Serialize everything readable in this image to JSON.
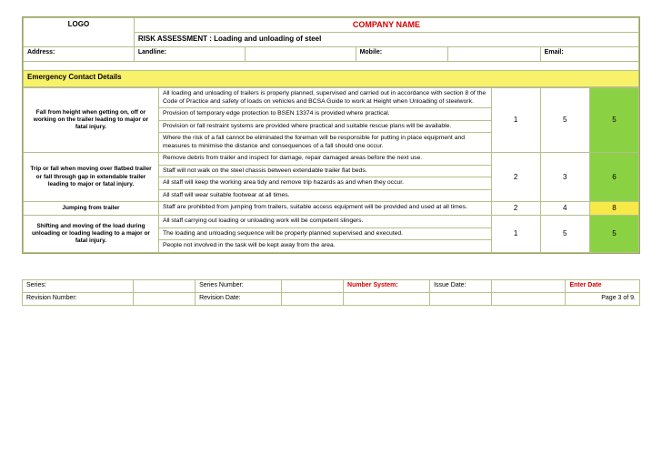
{
  "header": {
    "logo": "LOGO",
    "company": "COMPANY NAME",
    "ra_title": "RISK ASSESSMENT : Loading and unloading of steel",
    "address_label": "Address:",
    "landline_label": "Landline:",
    "mobile_label": "Mobile:",
    "email_label": "Email:"
  },
  "ecd_label": "Emergency Contact Details",
  "rows": [
    {
      "hazard": "Fall from height when getting on, off or working on the trailer leading to major or fatal injury.",
      "measures": [
        "All loading and unloading of trailers is properly planned, supervised and carried out in accordance with section 8 of the Code of Practice and safety of loads on vehicles and BCSA Guide to work at Height when Unloading of steelwork.",
        "Provision of temporary edge protection to BSEN 13374 is provided where practical.",
        "Provision or fall restraint systems are provided where practical and suitable rescue plans will be available.",
        "Where the risk of a fall cannot be eliminated the foreman will be responsible for putting in place equipment and measures to minimise the distance and consequences of a fall should one occur."
      ],
      "score1": "1",
      "score2": "5",
      "score3": "5",
      "score3_class": "green"
    },
    {
      "hazard": "Trip or fall when moving over flatbed trailer or fall through gap in extendable trailer leading to major or fatal injury.",
      "measures": [
        "Remove debris from trailer and inspect for damage, repair damaged areas before the next use.",
        "Staff will not walk on the steel chassis between extendable trailer flat beds.",
        "All staff will keep the working area tidy and remove trip hazards as and when they occur.",
        "All staff will wear suitable footwear at all times."
      ],
      "score1": "2",
      "score2": "3",
      "score3": "6",
      "score3_class": "green"
    },
    {
      "hazard": "Jumping from trailer",
      "measures": [
        "Staff are prohibited from jumping from trailers, suitable access equipment will be provided and used at all times."
      ],
      "score1": "2",
      "score2": "4",
      "score3": "8",
      "score3_class": "yellow"
    },
    {
      "hazard": "Shifting and moving of the load during unloading or loading leading to a major or fatal injury.",
      "measures": [
        "All staff carrying out loading or unloading work will be competent slingers.",
        "The loading and unloading sequence will be properly planned supervised and executed.",
        "People not involved in the task will be kept away from the area."
      ],
      "score1": "1",
      "score2": "5",
      "score3": "5",
      "score3_class": "green"
    }
  ],
  "footer": {
    "series_label": "Series:",
    "series_number_label": "Series Number:",
    "number_system_label": "Number System:",
    "issue_date_label": "Issue Date:",
    "enter_date_label": "Enter Date",
    "revision_number_label": "Revision Number:",
    "revision_date_label": "Revision Date:",
    "page_label": "Page 3 of 9."
  },
  "colors": {
    "border": "#b7bf8a",
    "green": "#8bd144",
    "yellow": "#f7e948",
    "ecd_bar": "#f7f26a",
    "red": "#d60000"
  }
}
